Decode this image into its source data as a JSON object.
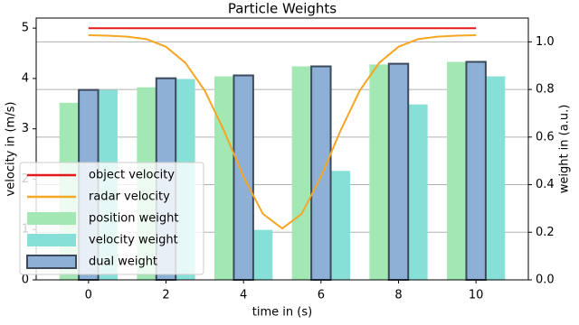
{
  "chart_data": {
    "type": "bar",
    "title": "Particle Weights",
    "x_label": "time in (s)",
    "y_label": "velocity in (m/s)",
    "y2_label": "weight in (a.u.)",
    "xlim": [
      -1.35,
      11.35
    ],
    "xticks": [
      0,
      2,
      4,
      6,
      8,
      10
    ],
    "ylim": [
      0,
      5.2
    ],
    "yticks": [
      0,
      1,
      2,
      3,
      4,
      5
    ],
    "y2lim": [
      0,
      1.1
    ],
    "y2ticks": [
      {
        "value": 0,
        "label": "0.0"
      },
      0.2,
      0.4,
      0.6,
      0.8,
      {
        "value": 1,
        "label": "1.0"
      }
    ],
    "grid": "y2",
    "legend": "lower left",
    "series": [
      {
        "name": "object velocity",
        "type": "line",
        "color": "#e31a1c",
        "x": [
          0,
          10
        ],
        "values": [
          5,
          5
        ]
      },
      {
        "name": "radar velocity",
        "type": "line",
        "color": "#f5a623",
        "x": [
          0,
          0.5,
          1,
          1.5,
          2,
          2.5,
          3,
          3.5,
          4,
          4.5,
          5,
          5.5,
          6,
          6.5,
          7,
          7.5,
          8,
          8.5,
          9,
          9.5,
          10
        ],
        "values": [
          4.86,
          4.85,
          4.83,
          4.78,
          4.63,
          4.31,
          3.76,
          2.96,
          2.05,
          1.31,
          1.02,
          1.31,
          2.05,
          2.96,
          3.76,
          4.31,
          4.63,
          4.78,
          4.83,
          4.85,
          4.86
        ]
      },
      {
        "name": "position weight",
        "type": "bar",
        "axis": "y2",
        "color": "#a3e8b4",
        "x": [
          0,
          2,
          4,
          6,
          8,
          10
        ],
        "values": [
          0.744,
          0.809,
          0.855,
          0.897,
          0.905,
          0.916
        ]
      },
      {
        "name": "velocity weight",
        "type": "bar",
        "axis": "y2",
        "color": "#86e0d8",
        "x": [
          0,
          2,
          4,
          6,
          8,
          10
        ],
        "values": [
          0.798,
          0.844,
          0.21,
          0.458,
          0.737,
          0.855
        ]
      },
      {
        "name": "dual weight",
        "type": "bar",
        "axis": "y2",
        "color": "#8fb0d6",
        "x": [
          0,
          2,
          4,
          6,
          8,
          10
        ],
        "values": [
          0.798,
          0.847,
          0.859,
          0.897,
          0.908,
          0.916
        ]
      }
    ]
  }
}
